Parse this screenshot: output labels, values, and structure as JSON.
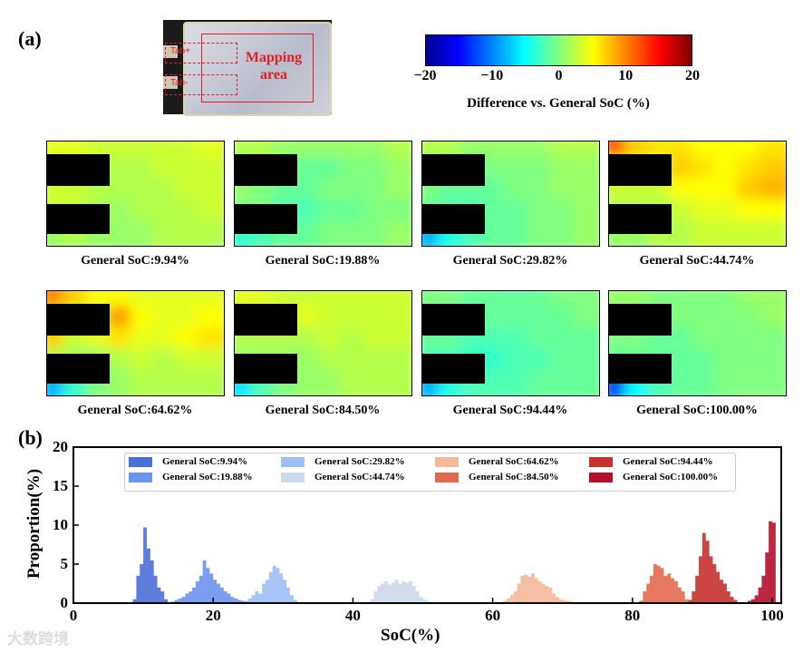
{
  "panel_a_label": "(a)",
  "panel_b_label": "(b)",
  "photo": {
    "mapping_label_1": "Mapping",
    "mapping_label_2": "area",
    "tab_pos": "Tab+",
    "tab_neg": "Tab-"
  },
  "colorbar": {
    "title": "Difference vs. General SoC (%)",
    "ticks": [
      "−20",
      "−10",
      "0",
      "10",
      "20"
    ],
    "range": [
      -20,
      20
    ],
    "colormap": "jet"
  },
  "watermark": "大数跨境",
  "chart_data": [
    {
      "type": "heatmap",
      "title": "Difference maps",
      "colormap": "jet",
      "range": [
        -20,
        20
      ],
      "panels": [
        {
          "label": "General SoC:9.94%",
          "grid": [
            [
              4,
              4,
              3,
              3,
              3,
              3,
              3,
              4
            ],
            [
              3,
              3,
              3,
              2,
              2,
              3,
              3,
              3
            ],
            [
              3,
              3,
              2,
              2,
              2,
              2,
              3,
              3
            ],
            [
              3,
              3,
              2,
              1,
              2,
              2,
              2,
              3
            ],
            [
              1,
              2,
              1,
              1,
              1,
              2,
              2,
              2
            ]
          ]
        },
        {
          "label": "General SoC:19.88%",
          "grid": [
            [
              2,
              2,
              1,
              1,
              1,
              1,
              1,
              2
            ],
            [
              1,
              1,
              0,
              -1,
              -1,
              0,
              0,
              1
            ],
            [
              1,
              0,
              -1,
              -1,
              0,
              0,
              0,
              1
            ],
            [
              0,
              0,
              -2,
              -2,
              -1,
              -1,
              0,
              0
            ],
            [
              -3,
              -2,
              -1,
              -1,
              0,
              0,
              0,
              1
            ]
          ]
        },
        {
          "label": "General SoC:29.82%",
          "grid": [
            [
              2,
              2,
              1,
              1,
              1,
              1,
              2,
              2
            ],
            [
              1,
              0,
              -1,
              0,
              0,
              0,
              1,
              1
            ],
            [
              0,
              -1,
              -1,
              -1,
              0,
              0,
              1,
              1
            ],
            [
              -1,
              -2,
              -2,
              -1,
              -1,
              0,
              0,
              1
            ],
            [
              -8,
              -4,
              -2,
              -1,
              -1,
              0,
              0,
              1
            ]
          ]
        },
        {
          "label": "General SoC:44.74%",
          "grid": [
            [
              12,
              7,
              6,
              6,
              5,
              5,
              5,
              6
            ],
            [
              5,
              4,
              4,
              7,
              6,
              5,
              6,
              7
            ],
            [
              3,
              3,
              3,
              5,
              5,
              5,
              7,
              8
            ],
            [
              2,
              2,
              2,
              3,
              4,
              4,
              5,
              5
            ],
            [
              1,
              1,
              2,
              2,
              3,
              3,
              3,
              3
            ]
          ]
        },
        {
          "label": "General SoC:64.62%",
          "grid": [
            [
              10,
              7,
              5,
              5,
              4,
              4,
              4,
              4
            ],
            [
              6,
              4,
              3,
              9,
              5,
              4,
              4,
              5
            ],
            [
              7,
              3,
              4,
              6,
              4,
              4,
              5,
              6
            ],
            [
              2,
              1,
              1,
              2,
              3,
              2,
              3,
              3
            ],
            [
              -8,
              -3,
              0,
              1,
              2,
              2,
              2,
              2
            ]
          ]
        },
        {
          "label": "General SoC:84.50%",
          "grid": [
            [
              4,
              4,
              3,
              3,
              3,
              3,
              3,
              3
            ],
            [
              3,
              3,
              3,
              4,
              3,
              3,
              3,
              3
            ],
            [
              2,
              2,
              2,
              2,
              3,
              2,
              3,
              3
            ],
            [
              1,
              1,
              1,
              1,
              2,
              2,
              2,
              2
            ],
            [
              -6,
              -2,
              0,
              1,
              1,
              2,
              2,
              2
            ]
          ]
        },
        {
          "label": "General SoC:94.44%",
          "grid": [
            [
              0,
              0,
              -1,
              -1,
              -1,
              -1,
              0,
              0
            ],
            [
              -1,
              -1,
              -2,
              -1,
              -1,
              -1,
              -1,
              0
            ],
            [
              -1,
              -1,
              -2,
              -2,
              -2,
              -1,
              -1,
              -1
            ],
            [
              -2,
              -2,
              -3,
              -3,
              -2,
              -2,
              -1,
              -1
            ],
            [
              -8,
              -4,
              -2,
              -2,
              -2,
              -1,
              -1,
              -1
            ]
          ]
        },
        {
          "label": "General SoC:100.00%",
          "grid": [
            [
              1,
              1,
              0,
              0,
              0,
              0,
              1,
              1
            ],
            [
              0,
              0,
              0,
              0,
              0,
              0,
              0,
              1
            ],
            [
              0,
              0,
              -1,
              -1,
              0,
              0,
              0,
              0
            ],
            [
              -1,
              -1,
              -1,
              -1,
              -1,
              0,
              0,
              0
            ],
            [
              -12,
              -5,
              -2,
              -1,
              -1,
              0,
              0,
              0
            ]
          ]
        }
      ]
    },
    {
      "type": "area",
      "xlabel": "SoC(%)",
      "ylabel": "Proportion(%)",
      "xlim": [
        0,
        100
      ],
      "ylim": [
        0,
        20
      ],
      "xticks": [
        0,
        20,
        40,
        60,
        80,
        100
      ],
      "yticks": [
        0,
        5,
        10,
        15,
        20
      ],
      "legend": "top",
      "bin_width": 0.5,
      "series": [
        {
          "name": "General SoC:9.94%",
          "color": "#4a6fd6",
          "x_start": 8.5,
          "values": [
            0.5,
            3.5,
            5,
            9.7,
            7,
            5.5,
            3.5,
            2,
            1.5,
            0.5,
            0.1
          ]
        },
        {
          "name": "General SoC:19.88%",
          "color": "#6b95ee",
          "x_start": 14,
          "values": [
            0.2,
            0.4,
            0.6,
            0.8,
            1.2,
            1.5,
            2,
            2.8,
            3.5,
            5.5,
            4.5,
            3.8,
            3,
            2.5,
            2,
            1.5,
            1.2,
            0.8,
            0.6,
            0.4,
            0.3,
            0.2
          ]
        },
        {
          "name": "General SoC:29.82%",
          "color": "#9ebff6",
          "x_start": 24.5,
          "values": [
            0.3,
            0.6,
            1,
            1.5,
            1.2,
            2.5,
            3,
            4,
            4.8,
            4.5,
            3.8,
            3,
            2,
            1,
            0.4,
            0.1
          ]
        },
        {
          "name": "General SoC:44.74%",
          "color": "#ccd9eb",
          "x_start": 42,
          "values": [
            0.2,
            0.5,
            1.5,
            2.2,
            2.5,
            2.8,
            2.4,
            2.6,
            3,
            2.5,
            2.8,
            2.6,
            2.8,
            2.2,
            1.5,
            0.8,
            0.5,
            0.3,
            0.2,
            0.1,
            0.1
          ]
        },
        {
          "name": "General SoC:64.62%",
          "color": "#f4b89a",
          "x_start": 61.5,
          "values": [
            0.3,
            0.6,
            1,
            1.5,
            2.5,
            3.5,
            3.6,
            3.4,
            3.8,
            3.2,
            2.8,
            2.5,
            2.2,
            2,
            1.2,
            0.8,
            0.5,
            0.4,
            0.3,
            0.2,
            0.1,
            0.1,
            0.1
          ]
        },
        {
          "name": "General SoC:84.50%",
          "color": "#e2694e",
          "x_start": 81,
          "values": [
            0.3,
            1.5,
            2.5,
            3.5,
            5,
            4.8,
            4.5,
            3.5,
            3.8,
            3.2,
            2.8,
            2,
            1.5,
            0.5,
            0.2,
            0.1
          ]
        },
        {
          "name": "General SoC:94.44%",
          "color": "#c7312f",
          "x_start": 88,
          "values": [
            0.4,
            1.5,
            3.5,
            6,
            9,
            8,
            6,
            5,
            4,
            3,
            2.5,
            1.5,
            0.8,
            0.4,
            0.1
          ]
        },
        {
          "name": "General SoC:100.00%",
          "color": "#b2102a",
          "x_start": 96.5,
          "values": [
            0.3,
            0.5,
            1,
            2,
            3.5,
            6.5,
            10.5,
            10.3
          ]
        }
      ]
    }
  ]
}
